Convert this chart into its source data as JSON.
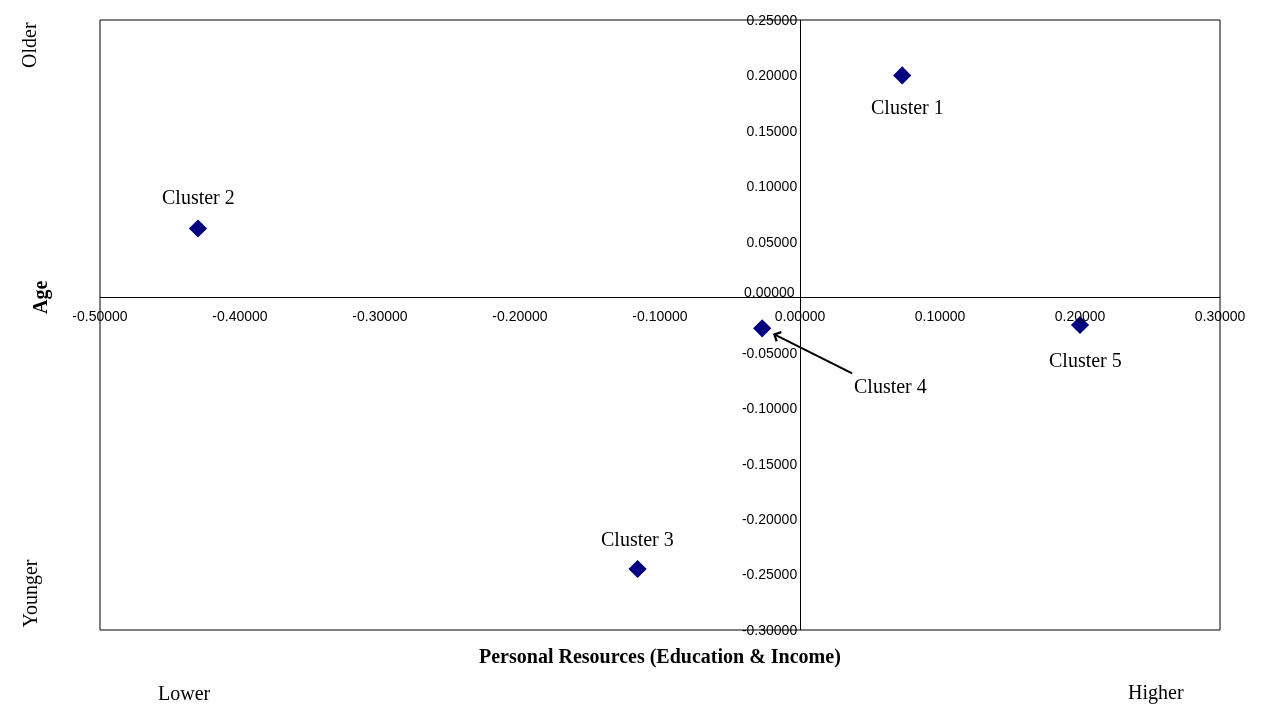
{
  "chart_data": {
    "type": "scatter",
    "xlabel": "Personal Resources (Education & Income)",
    "ylabel": "Age",
    "x": [
      0.073,
      -0.43,
      -0.116,
      -0.027,
      0.2
    ],
    "series": [
      {
        "color": "#000080",
        "values": [
          0.2,
          0.062,
          -0.245,
          -0.028,
          -0.025
        ]
      }
    ],
    "marker": "diamond",
    "grid": false,
    "legend": false,
    "xlim": [
      -0.5,
      0.3
    ],
    "ylim": [
      -0.3,
      0.25
    ],
    "xticks": [
      {
        "value": -0.5,
        "label": "-0.50000"
      },
      {
        "value": -0.4,
        "label": "-0.40000"
      },
      {
        "value": -0.3,
        "label": "-0.30000"
      },
      {
        "value": -0.2,
        "label": "-0.20000"
      },
      {
        "value": -0.1,
        "label": "-0.10000"
      },
      {
        "value": 0,
        "label": "0.00000"
      },
      {
        "value": 0.1,
        "label": "0.10000"
      },
      {
        "value": 0.2,
        "label": "0.20000"
      },
      {
        "value": 0.3,
        "label": "0.30000"
      }
    ],
    "yticks": [
      {
        "value": 0.25,
        "label": "0.25000"
      },
      {
        "value": 0.2,
        "label": "0.20000"
      },
      {
        "value": 0.15,
        "label": "0.15000"
      },
      {
        "value": 0.1,
        "label": "0.10000"
      },
      {
        "value": 0.05,
        "label": "0.05000"
      },
      {
        "value": 0,
        "label": "0.00000"
      },
      {
        "value": -0.05,
        "label": "-0.05000"
      },
      {
        "value": -0.1,
        "label": "-0.10000"
      },
      {
        "value": -0.15,
        "label": "-0.15000"
      },
      {
        "value": -0.2,
        "label": "-0.20000"
      },
      {
        "value": -0.25,
        "label": "-0.25000"
      },
      {
        "value": -0.3,
        "label": "-0.30000"
      }
    ],
    "annotations": [
      {
        "text": "Cluster 1",
        "x": 0.073,
        "y": 0.2
      },
      {
        "text": "Cluster 2",
        "x": -0.43,
        "y": 0.062
      },
      {
        "text": "Cluster 3",
        "x": -0.116,
        "y": -0.245
      },
      {
        "text": "Cluster 4",
        "x": -0.027,
        "y": -0.028
      },
      {
        "text": "Cluster 5",
        "x": 0.2,
        "y": -0.025
      },
      "Older",
      "Younger",
      "Lower",
      "Higher"
    ]
  }
}
